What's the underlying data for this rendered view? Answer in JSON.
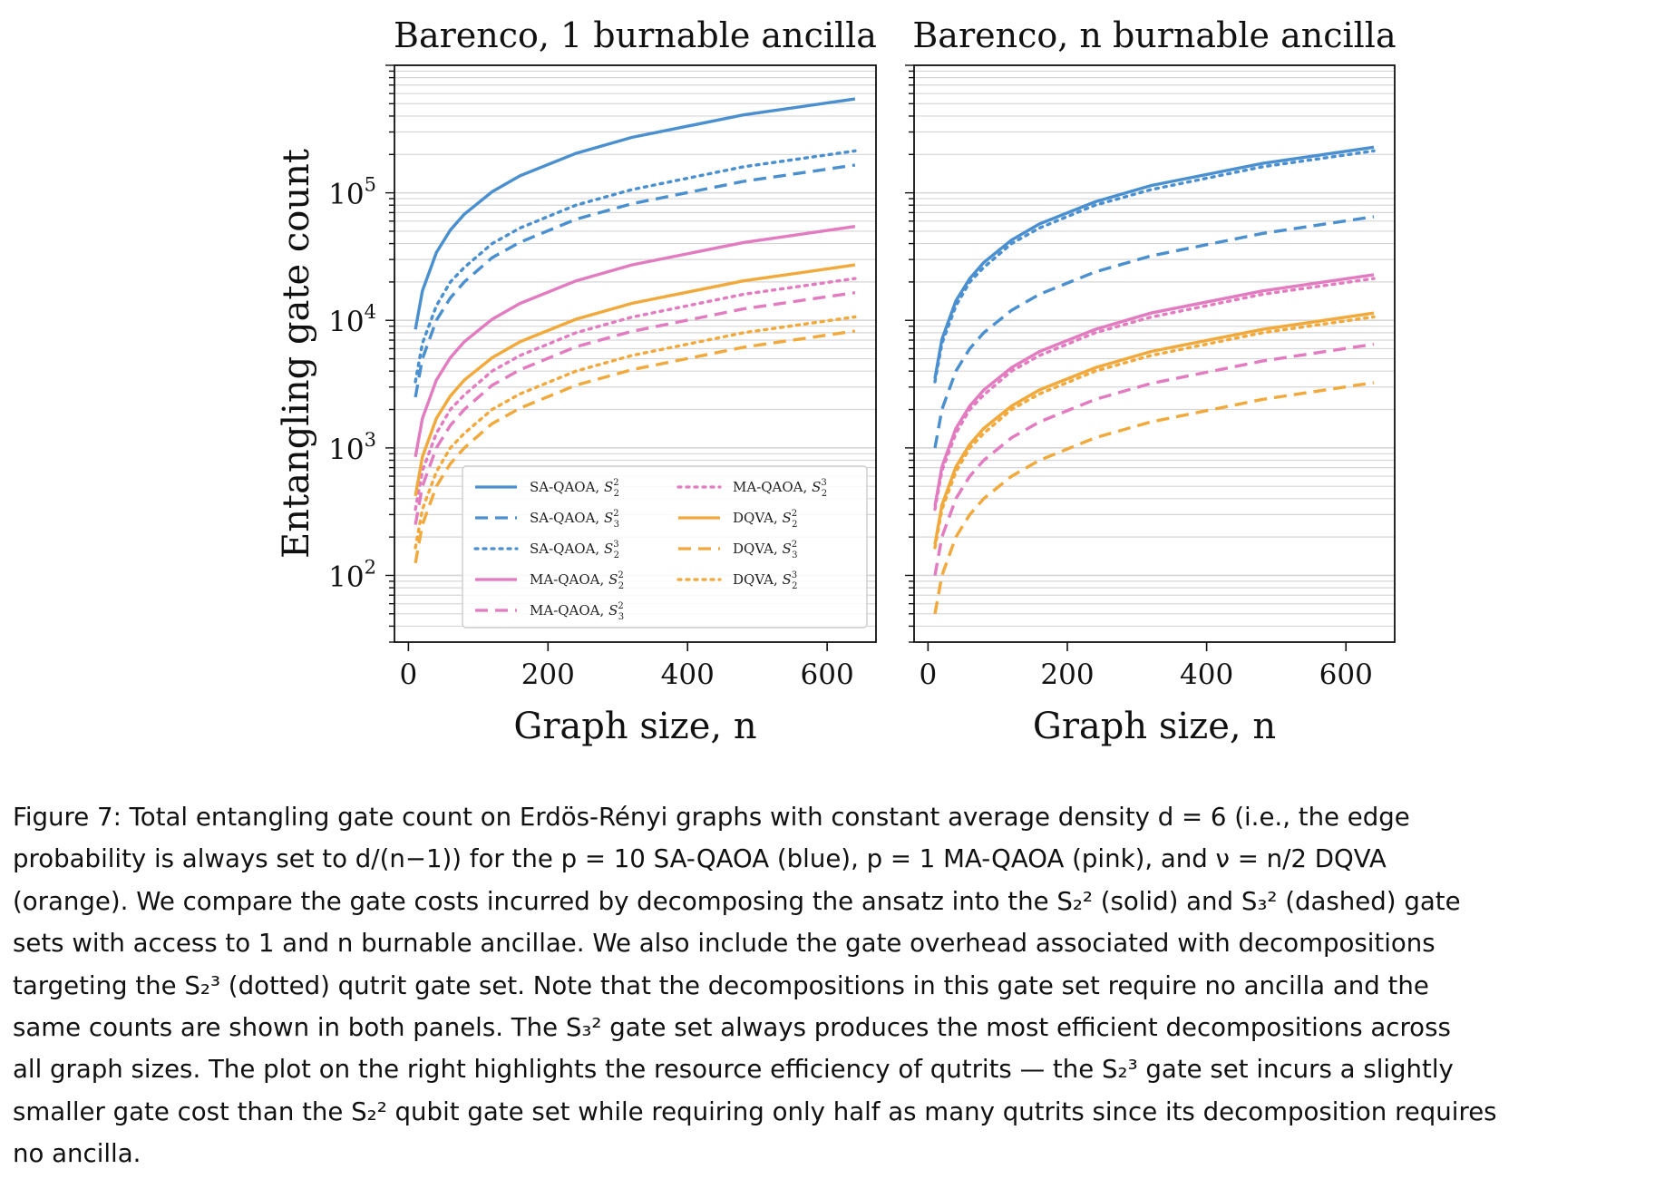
{
  "chart_data": [
    {
      "type": "line",
      "title": "Barenco, 1 burnable ancilla",
      "xlabel": "Graph size, n",
      "ylabel": "Entangling gate count",
      "yscale": "log",
      "xlim": [
        -20,
        670
      ],
      "ylim": [
        30,
        1000000
      ],
      "xticks": [
        "0",
        "200",
        "400",
        "600"
      ],
      "yticks": [
        "10^2",
        "10^3",
        "10^4",
        "10^5"
      ],
      "grid": "horizontal minor log grid",
      "legend_position": "bottom-right",
      "x": [
        10,
        20,
        40,
        60,
        80,
        120,
        160,
        240,
        320,
        480,
        640
      ],
      "series": [
        {
          "name": "SA-QAOA, S_2^2",
          "color": "#4a8fcf",
          "style": "solid",
          "values": [
            8500,
            17000,
            34000,
            51000,
            68000,
            102000,
            136000,
            204000,
            272000,
            408000,
            545000
          ]
        },
        {
          "name": "SA-QAOA, S_3^2",
          "color": "#4a8fcf",
          "style": "dashed",
          "values": [
            2500,
            5000,
            10000,
            15000,
            20000,
            31000,
            41000,
            62000,
            82000,
            123000,
            165000
          ]
        },
        {
          "name": "SA-QAOA, S_2^3",
          "color": "#4a8fcf",
          "style": "dotted",
          "values": [
            3300,
            6600,
            13000,
            20000,
            26000,
            40000,
            53000,
            80000,
            106000,
            160000,
            213000
          ]
        },
        {
          "name": "MA-QAOA, S_2^2",
          "color": "#e27bbf",
          "style": "solid",
          "values": [
            850,
            1700,
            3400,
            5100,
            6800,
            10200,
            13600,
            20400,
            27200,
            40800,
            54500
          ]
        },
        {
          "name": "MA-QAOA, S_3^2",
          "color": "#e27bbf",
          "style": "dashed",
          "values": [
            250,
            500,
            1000,
            1500,
            2000,
            3100,
            4100,
            6200,
            8200,
            12300,
            16500
          ]
        },
        {
          "name": "MA-QAOA, S_2^3",
          "color": "#e27bbf",
          "style": "dotted",
          "values": [
            330,
            660,
            1300,
            2000,
            2600,
            4000,
            5300,
            8000,
            10600,
            16000,
            21300
          ]
        },
        {
          "name": "DQVA, S_2^2",
          "color": "#f2a93b",
          "style": "solid",
          "values": [
            420,
            850,
            1700,
            2550,
            3400,
            5100,
            6800,
            10200,
            13600,
            20400,
            27200
          ]
        },
        {
          "name": "DQVA, S_3^2",
          "color": "#f2a93b",
          "style": "dashed",
          "values": [
            125,
            250,
            500,
            750,
            1000,
            1550,
            2050,
            3100,
            4100,
            6150,
            8250
          ]
        },
        {
          "name": "DQVA, S_2^3",
          "color": "#f2a93b",
          "style": "dotted",
          "values": [
            165,
            330,
            650,
            1000,
            1300,
            2000,
            2650,
            4000,
            5300,
            8000,
            10650
          ]
        }
      ]
    },
    {
      "type": "line",
      "title": "Barenco, n burnable ancilla",
      "xlabel": "Graph size, n",
      "yscale": "log",
      "xlim": [
        -20,
        670
      ],
      "ylim": [
        30,
        1000000
      ],
      "xticks": [
        "0",
        "200",
        "400",
        "600"
      ],
      "grid": "horizontal minor log grid",
      "x": [
        10,
        20,
        40,
        60,
        80,
        120,
        160,
        240,
        320,
        480,
        640
      ],
      "series": [
        {
          "name": "SA-QAOA, S_2^2",
          "color": "#4a8fcf",
          "style": "solid",
          "values": [
            3500,
            7100,
            14200,
            21300,
            28400,
            42600,
            57000,
            85000,
            114000,
            170000,
            228000
          ]
        },
        {
          "name": "SA-QAOA, S_3^2",
          "color": "#4a8fcf",
          "style": "dashed",
          "values": [
            1000,
            2000,
            4000,
            6000,
            8000,
            12000,
            16000,
            24000,
            32000,
            48000,
            65000
          ]
        },
        {
          "name": "SA-QAOA, S_2^3",
          "color": "#4a8fcf",
          "style": "dotted",
          "values": [
            3300,
            6600,
            13000,
            20000,
            26000,
            40000,
            53000,
            80000,
            106000,
            160000,
            213000
          ]
        },
        {
          "name": "MA-QAOA, S_2^2",
          "color": "#e27bbf",
          "style": "solid",
          "values": [
            350,
            710,
            1420,
            2130,
            2840,
            4260,
            5700,
            8500,
            11400,
            17000,
            22800
          ]
        },
        {
          "name": "MA-QAOA, S_3^2",
          "color": "#e27bbf",
          "style": "dashed",
          "values": [
            100,
            200,
            400,
            600,
            800,
            1200,
            1600,
            2400,
            3200,
            4800,
            6500
          ]
        },
        {
          "name": "MA-QAOA, S_2^3",
          "color": "#e27bbf",
          "style": "dotted",
          "values": [
            330,
            660,
            1300,
            2000,
            2600,
            4000,
            5300,
            8000,
            10600,
            16000,
            21300
          ]
        },
        {
          "name": "DQVA, S_2^2",
          "color": "#f2a93b",
          "style": "solid",
          "values": [
            175,
            355,
            710,
            1065,
            1420,
            2130,
            2850,
            4250,
            5700,
            8500,
            11400
          ]
        },
        {
          "name": "DQVA, S_3^2",
          "color": "#f2a93b",
          "style": "dashed",
          "values": [
            50,
            100,
            200,
            300,
            400,
            600,
            800,
            1200,
            1600,
            2400,
            3250
          ]
        },
        {
          "name": "DQVA, S_2^3",
          "color": "#f2a93b",
          "style": "dotted",
          "values": [
            165,
            330,
            650,
            1000,
            1300,
            2000,
            2650,
            4000,
            5300,
            8000,
            10650
          ]
        }
      ]
    }
  ],
  "caption": {
    "lines": [
      "Figure 7: Total entangling gate count on Erdös-Rényi graphs with constant average density d = 6 (i.e., the edge",
      "probability is always set to d/(n−1)) for the p = 10 SA-QAOA (blue), p = 1 MA-QAOA (pink), and ν = n/2 DQVA",
      "(orange). We compare the gate costs incurred by decomposing the ansatz into the S₂² (solid) and S₃² (dashed) gate",
      "sets with access to 1 and n burnable ancillae. We also include the gate overhead associated with decompositions",
      "targeting the S₂³ (dotted) qutrit gate set. Note that the decompositions in this gate set require no ancilla and the",
      "same counts are shown in both panels. The S₃² gate set always produces the most efficient decompositions across",
      "all graph sizes. The plot on the right highlights the resource efficiency of qutrits — the S₂³ gate set incurs a slightly",
      "smaller gate cost than the S₂² qubit gate set while requiring only half as many qutrits since its decomposition requires",
      "no ancilla."
    ]
  }
}
